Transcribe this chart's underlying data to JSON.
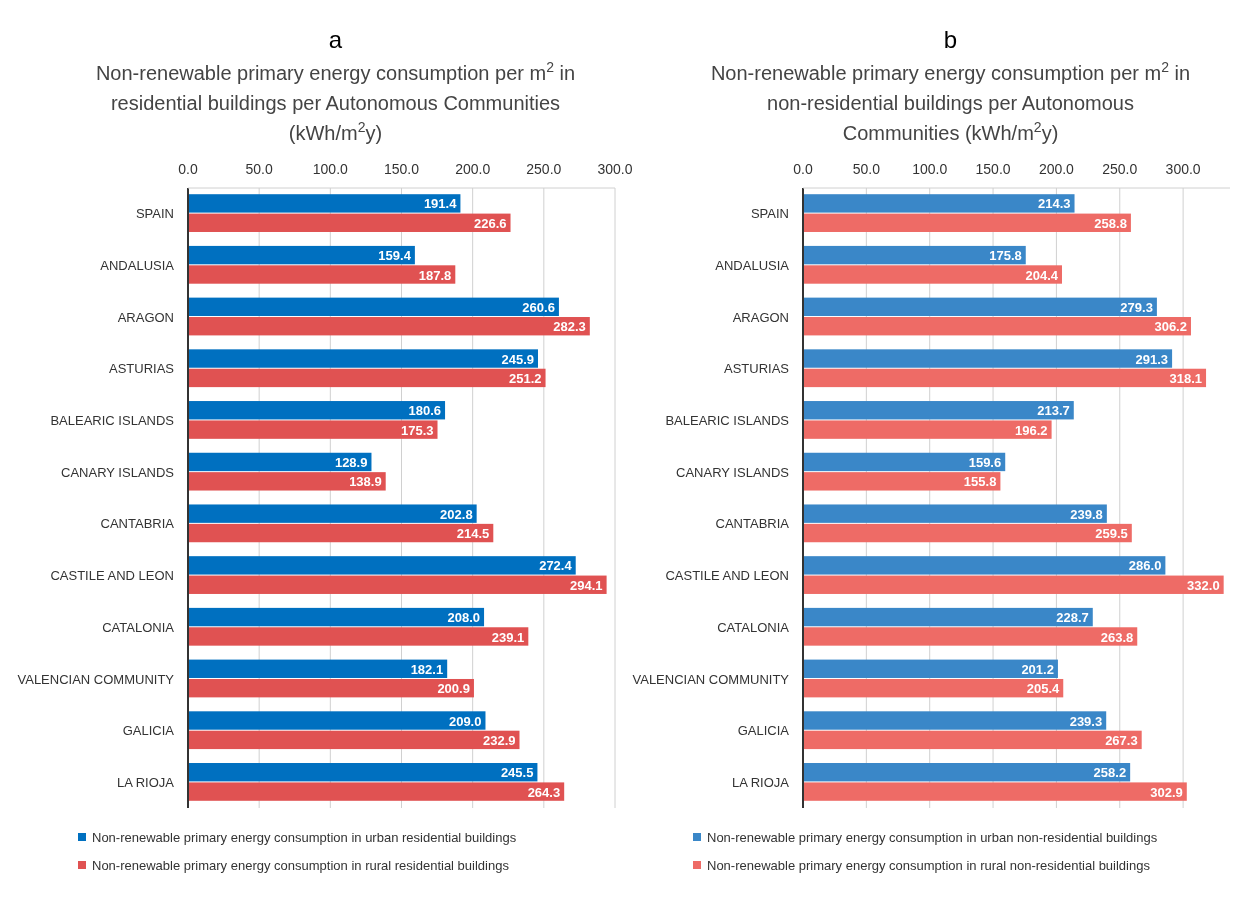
{
  "chart_data": [
    {
      "type": "bar",
      "orientation": "horizontal",
      "title": "a",
      "subtitle": "Non-renewable primary energy consumption per m$^{2}$ in residential buildings per Autonomous Communities (kWh/m$^{2}$y)",
      "categories": [
        "SPAIN",
        "ANDALUSIA",
        "ARAGON",
        "ASTURIAS",
        "BALEARIC ISLANDS",
        "CANARY ISLANDS",
        "CANTABRIA",
        "CASTILE AND LEON",
        "CATALONIA",
        "VALENCIAN COMMUNITY",
        "GALICIA",
        "LA RIOJA"
      ],
      "series": [
        {
          "name": "Non-renewable primary energy consumption in urban residential buildings",
          "color": "#0070c0",
          "values": [
            191.4,
            159.4,
            260.6,
            245.9,
            180.6,
            128.9,
            202.8,
            272.4,
            208.0,
            182.1,
            209.0,
            245.5
          ],
          "value_labels": [
            "191.4",
            "159.4",
            "260.6",
            "245.9",
            "180.6",
            "128.9",
            "202.8",
            "272.4",
            "208.0",
            "182.1",
            "209.0",
            "245.5"
          ]
        },
        {
          "name": "Non-renewable primary energy consumption in rural residential buildings",
          "color": "#e05252",
          "values": [
            226.6,
            187.8,
            282.3,
            251.2,
            175.3,
            138.9,
            214.5,
            294.1,
            239.1,
            200.9,
            232.9,
            264.3
          ],
          "value_labels": [
            "226.6",
            "187.8",
            "282.3",
            "251.2",
            "175.3",
            "138.9",
            "214.5",
            "294.1",
            "239.1",
            "200.9",
            "232.9",
            "264.3"
          ]
        }
      ],
      "xlim": [
        0,
        300
      ],
      "xticks": [
        {
          "value": 0,
          "label": "0.0"
        },
        {
          "value": 50,
          "label": "50.0"
        },
        {
          "value": 100,
          "label": "100.0"
        },
        {
          "value": 150,
          "label": "150.0"
        },
        {
          "value": 200,
          "label": "200.0"
        },
        {
          "value": 250,
          "label": "250.0"
        },
        {
          "value": 300,
          "label": "300.0"
        }
      ],
      "grid": "x",
      "legend": "bottom"
    },
    {
      "type": "bar",
      "orientation": "horizontal",
      "title": "b",
      "subtitle": "Non-renewable primary energy consumption per m$^{2}$ in non-residential buildings per Autonomous Communities (kWh/m$^{2}$y)",
      "categories": [
        "SPAIN",
        "ANDALUSIA",
        "ARAGON",
        "ASTURIAS",
        "BALEARIC ISLANDS",
        "CANARY ISLANDS",
        "CANTABRIA",
        "CASTILE AND LEON",
        "CATALONIA",
        "VALENCIAN COMMUNITY",
        "GALICIA",
        "LA RIOJA"
      ],
      "series": [
        {
          "name": "Non-renewable primary energy consumption in urban non-residential buildings",
          "color": "#3a87c8",
          "values": [
            214.3,
            175.8,
            279.3,
            291.3,
            213.7,
            159.6,
            239.8,
            286.0,
            228.7,
            201.2,
            239.3,
            258.2
          ],
          "value_labels": [
            "214.3",
            "175.8",
            "279.3",
            "291.3",
            "213.7",
            "159.6",
            "239.8",
            "286.0",
            "228.7",
            "201.2",
            "239.3",
            "258.2"
          ]
        },
        {
          "name": "Non-renewable primary energy consumption in rural non-residential buildings",
          "color": "#ee6b66",
          "values": [
            258.8,
            204.4,
            306.2,
            318.1,
            196.2,
            155.8,
            259.5,
            332.0,
            263.8,
            205.4,
            267.3,
            302.9
          ],
          "value_labels": [
            "258.8",
            "204.4",
            "306.2",
            "318.1",
            "196.2",
            "155.8",
            "259.5",
            "332.0",
            "263.8",
            "205.4",
            "267.3",
            "302.9"
          ]
        }
      ],
      "xlim": [
        0,
        337
      ],
      "xticks": [
        {
          "value": 0,
          "label": "0.0"
        },
        {
          "value": 50,
          "label": "50.0"
        },
        {
          "value": 100,
          "label": "100.0"
        },
        {
          "value": 150,
          "label": "150.0"
        },
        {
          "value": 200,
          "label": "200.0"
        },
        {
          "value": 250,
          "label": "250.0"
        },
        {
          "value": 300,
          "label": "300.0"
        }
      ],
      "grid": "x",
      "legend": "bottom"
    }
  ]
}
